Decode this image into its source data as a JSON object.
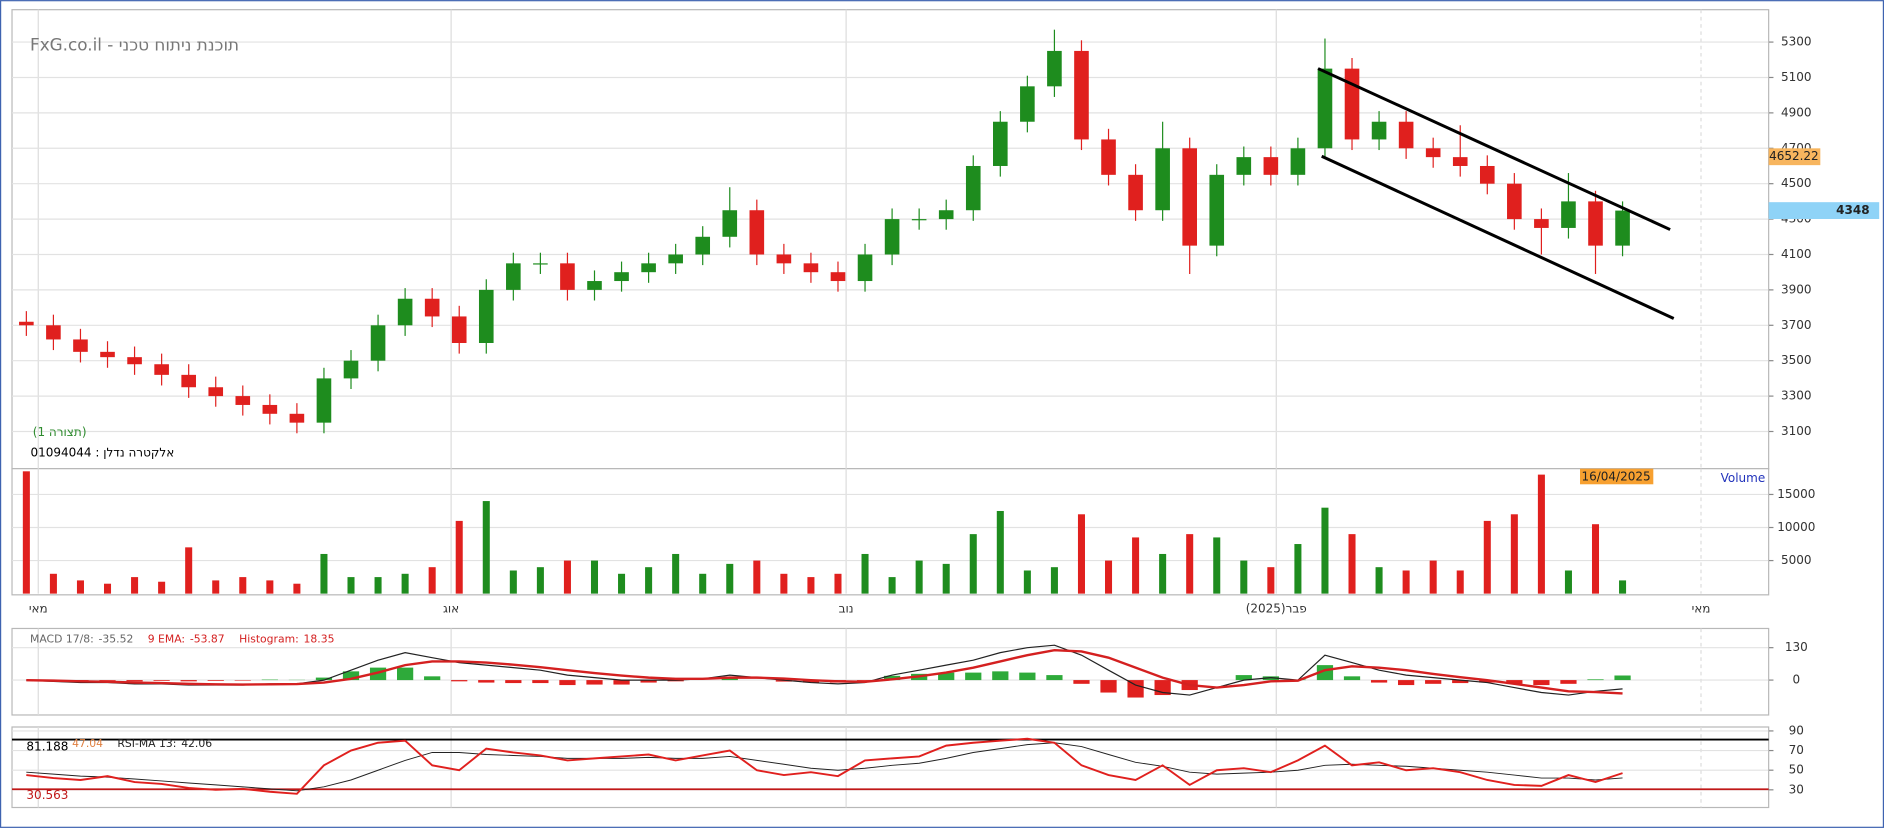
{
  "chart_data": [
    {
      "type": "candlestick",
      "title": "FxG.co.il - תוכנת ניתוח טכני",
      "subtitle": "(תצורה 1)",
      "label": "אלקטרה נדלן : 01094044",
      "open": [
        3720,
        3700,
        3620,
        3550,
        3520,
        3480,
        3420,
        3350,
        3300,
        3250,
        3200,
        3150,
        3400,
        3500,
        3700,
        3850,
        3750,
        3600,
        3900,
        4050,
        4050,
        3900,
        3950,
        4000,
        4050,
        4100,
        4200,
        4350,
        4100,
        4050,
        4000,
        3950,
        4100,
        4300,
        4300,
        4350,
        4600,
        4850,
        5050,
        5250,
        4750,
        4550,
        4350,
        4700,
        4150,
        4550,
        4650,
        4550,
        4700,
        5150,
        4750,
        4850,
        4700,
        4650,
        4600,
        4500,
        4300,
        4250,
        4400,
        4150
      ],
      "high": [
        3780,
        3760,
        3680,
        3610,
        3580,
        3540,
        3480,
        3410,
        3360,
        3310,
        3260,
        3460,
        3560,
        3760,
        3910,
        3910,
        3810,
        3960,
        4110,
        4110,
        4110,
        4010,
        4060,
        4110,
        4160,
        4260,
        4480,
        4410,
        4160,
        4110,
        4060,
        4160,
        4360,
        4360,
        4410,
        4660,
        4910,
        5110,
        5370,
        5310,
        4810,
        4610,
        4850,
        4760,
        4610,
        4710,
        4710,
        4760,
        5320,
        5210,
        4910,
        4910,
        4760,
        4830,
        4660,
        4560,
        4360,
        4560,
        4460,
        4400
      ],
      "low": [
        3640,
        3560,
        3490,
        3460,
        3420,
        3360,
        3290,
        3240,
        3190,
        3140,
        3090,
        3090,
        3340,
        3440,
        3640,
        3690,
        3540,
        3540,
        3840,
        3990,
        3840,
        3840,
        3890,
        3940,
        3990,
        4040,
        4140,
        4040,
        3990,
        3940,
        3890,
        3890,
        4040,
        4240,
        4240,
        4290,
        4540,
        4790,
        4990,
        4690,
        4490,
        4290,
        4290,
        3990,
        4090,
        4490,
        4490,
        4490,
        4640,
        4690,
        4690,
        4640,
        4590,
        4540,
        4440,
        4240,
        4100,
        4190,
        3990,
        4090
      ],
      "close": [
        3700,
        3620,
        3550,
        3520,
        3480,
        3420,
        3350,
        3300,
        3250,
        3200,
        3150,
        3400,
        3500,
        3700,
        3850,
        3750,
        3600,
        3900,
        4050,
        4050,
        3900,
        3950,
        4000,
        4050,
        4100,
        4200,
        4350,
        4100,
        4050,
        4000,
        3950,
        4100,
        4300,
        4300,
        4350,
        4600,
        4850,
        5050,
        5250,
        4750,
        4550,
        4350,
        4700,
        4150,
        4550,
        4650,
        4550,
        4700,
        5150,
        4750,
        4850,
        4700,
        4650,
        4600,
        4500,
        4300,
        4250,
        4400,
        4150,
        4348
      ],
      "up_color": "#1e8c1e",
      "down_color": "#e0201e",
      "xlim": [
        -0.53,
        64.4
      ],
      "xticks": [
        {
          "value": 0.44,
          "label": "מאי"
        },
        {
          "value": 15.7,
          "label": "אוג"
        },
        {
          "value": 30.3,
          "label": "נוב"
        },
        {
          "value": 46.2,
          "label": "(2025)פבר"
        },
        {
          "value": 61.9,
          "label": "מאי"
        }
      ],
      "ylim": [
        2890,
        5483
      ],
      "yticks": [
        3100,
        3300,
        3500,
        3700,
        3900,
        4100,
        4300,
        4500,
        4700,
        4900,
        5100,
        5300
      ],
      "grid": true,
      "price_label": {
        "value": 4652.22,
        "color": "#f7b55e"
      },
      "last_price": {
        "value": 4348,
        "color": "#8fd3f7"
      }
    },
    {
      "type": "bar",
      "name": "Volume",
      "date": "16/04/2025",
      "values": [
        18500,
        3000,
        2000,
        1500,
        2500,
        1800,
        7000,
        2000,
        2500,
        2000,
        1500,
        6000,
        2500,
        2500,
        3000,
        4000,
        11000,
        14000,
        3500,
        4000,
        5000,
        5000,
        3000,
        4000,
        6000,
        3000,
        4500,
        5000,
        3000,
        2500,
        3000,
        6000,
        2500,
        5000,
        4500,
        9000,
        12500,
        3500,
        4000,
        12000,
        5000,
        8500,
        6000,
        9000,
        8500,
        5000,
        4000,
        7500,
        13000,
        9000,
        4000,
        3500,
        5000,
        3500,
        11000,
        12000,
        18000,
        3500,
        10500,
        2000
      ],
      "ylim": [
        0,
        18900
      ],
      "yticks": [
        5000,
        10000,
        15000
      ]
    },
    {
      "type": "macd",
      "series": [
        {
          "name": "MACD 17/8:",
          "color": "#222222",
          "values": [
            0,
            -5,
            -10,
            -10,
            -15,
            -15,
            -20,
            -20,
            -20,
            -15,
            -15,
            0,
            40,
            80,
            110,
            90,
            70,
            60,
            50,
            40,
            20,
            10,
            0,
            0,
            0,
            5,
            20,
            10,
            0,
            -10,
            -15,
            -10,
            20,
            40,
            60,
            80,
            110,
            130,
            140,
            100,
            40,
            -20,
            -50,
            -60,
            -30,
            0,
            10,
            0,
            100,
            70,
            40,
            20,
            10,
            0,
            -10,
            -30,
            -50,
            -60,
            -45,
            -35.52
          ]
        },
        {
          "name": "9 EMA:",
          "color": "#d42020",
          "values": [
            0,
            -2,
            -5,
            -7,
            -10,
            -12,
            -15,
            -17,
            -18,
            -17,
            -16,
            -10,
            5,
            30,
            60,
            75,
            75,
            70,
            62,
            52,
            40,
            28,
            18,
            10,
            5,
            5,
            10,
            10,
            6,
            0,
            -5,
            -7,
            3,
            15,
            30,
            50,
            75,
            100,
            120,
            115,
            90,
            50,
            10,
            -20,
            -30,
            -20,
            -5,
            -2,
            40,
            55,
            50,
            40,
            25,
            12,
            0,
            -15,
            -30,
            -45,
            -48,
            -53.87
          ]
        },
        {
          "name": "Histogram:",
          "color": "#d42020",
          "values": [
            0,
            -3,
            -5,
            -3,
            -5,
            -3,
            -5,
            -3,
            -2,
            2,
            1,
            10,
            35,
            50,
            50,
            15,
            -5,
            -10,
            -12,
            -12,
            -20,
            -18,
            -18,
            -10,
            -5,
            0,
            10,
            0,
            -6,
            -10,
            -10,
            -3,
            17,
            25,
            30,
            30,
            35,
            30,
            20,
            -15,
            -50,
            -70,
            -60,
            -40,
            0,
            20,
            15,
            2,
            60,
            15,
            -10,
            -20,
            -15,
            -12,
            -10,
            -15,
            -20,
            -15,
            3,
            18.35
          ]
        }
      ],
      "up_color": "#2eaa3a",
      "down_color": "#e0201e",
      "ylim": [
        -140,
        207
      ],
      "yticks": [
        0,
        130
      ]
    },
    {
      "type": "line",
      "series": [
        {
          "color": "#e0201e",
          "values": [
            45,
            42,
            40,
            44,
            38,
            36,
            32,
            30,
            31,
            28,
            26,
            55,
            70,
            78,
            80,
            55,
            50,
            72,
            68,
            65,
            60,
            62,
            64,
            66,
            60,
            65,
            70,
            50,
            45,
            48,
            44,
            60,
            62,
            64,
            75,
            78,
            80,
            82,
            78,
            55,
            45,
            40,
            55,
            35,
            50,
            52,
            48,
            60,
            75,
            55,
            58,
            50,
            52,
            48,
            40,
            35,
            34,
            45,
            38,
            47.04
          ]
        },
        {
          "name": "RSI-MA 13:",
          "color": "#222222",
          "values": [
            48,
            46,
            44,
            43,
            41,
            39,
            37,
            35,
            33,
            31,
            29,
            33,
            40,
            50,
            60,
            68,
            68,
            66,
            65,
            64,
            62,
            62,
            62,
            63,
            62,
            62,
            64,
            60,
            56,
            52,
            50,
            52,
            55,
            57,
            62,
            68,
            72,
            76,
            78,
            74,
            66,
            58,
            54,
            48,
            46,
            47,
            48,
            50,
            55,
            56,
            55,
            54,
            52,
            50,
            48,
            45,
            42,
            42,
            40,
            42.06
          ]
        }
      ],
      "levels": [
        {
          "value": 81.188,
          "color": "#000000"
        },
        {
          "value": 30.563,
          "color": "#c01818"
        }
      ],
      "ylim": [
        12,
        94
      ],
      "yticks": [
        30,
        50,
        70,
        90
      ]
    }
  ]
}
